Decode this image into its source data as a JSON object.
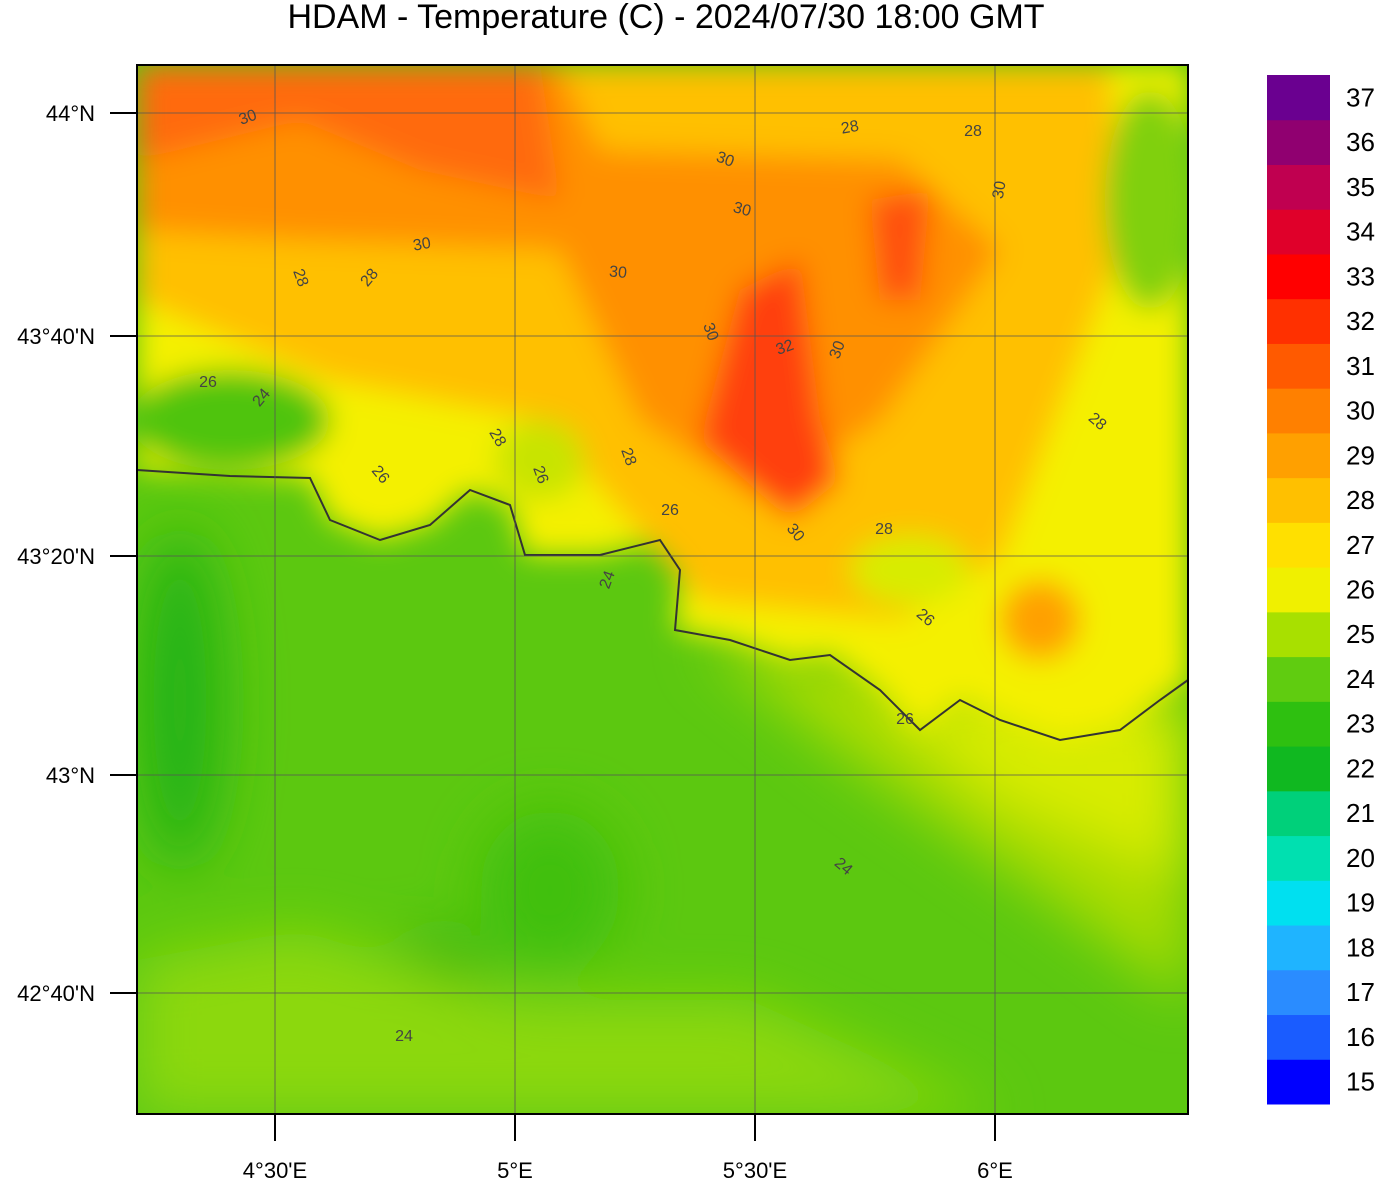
{
  "title": "HDAM - Temperature (C)  -  2024/07/30  18:00 GMT",
  "map": {
    "lat_labels": [
      "44°N",
      "43°40'N",
      "43°20'N",
      "43°N",
      "42°40'N"
    ],
    "lon_labels": [
      "4°30'E",
      "5°E",
      "5°30'E",
      "6°E"
    ],
    "contour_labels": [
      30,
      28,
      28,
      30,
      30,
      30,
      30,
      28,
      28,
      30,
      30,
      32,
      30,
      26,
      24,
      28,
      28,
      26,
      28,
      26,
      26,
      28,
      30,
      24,
      26,
      26,
      24,
      24
    ]
  },
  "colorbar": {
    "ticks": [
      15,
      16,
      17,
      18,
      19,
      20,
      21,
      22,
      23,
      24,
      25,
      26,
      27,
      28,
      29,
      30,
      31,
      32,
      33,
      34,
      35,
      36,
      37
    ],
    "colors": [
      "#0000ff",
      "#1a5cff",
      "#2a8cff",
      "#1fb4ff",
      "#00e0f0",
      "#00e0b0",
      "#00d07a",
      "#10b820",
      "#2ec010",
      "#60cc10",
      "#a8e000",
      "#f0f000",
      "#ffe000",
      "#ffc000",
      "#ffa000",
      "#ff8000",
      "#ff5a00",
      "#ff3000",
      "#ff0000",
      "#e0002a",
      "#c00050",
      "#900070",
      "#6a0090"
    ]
  }
}
